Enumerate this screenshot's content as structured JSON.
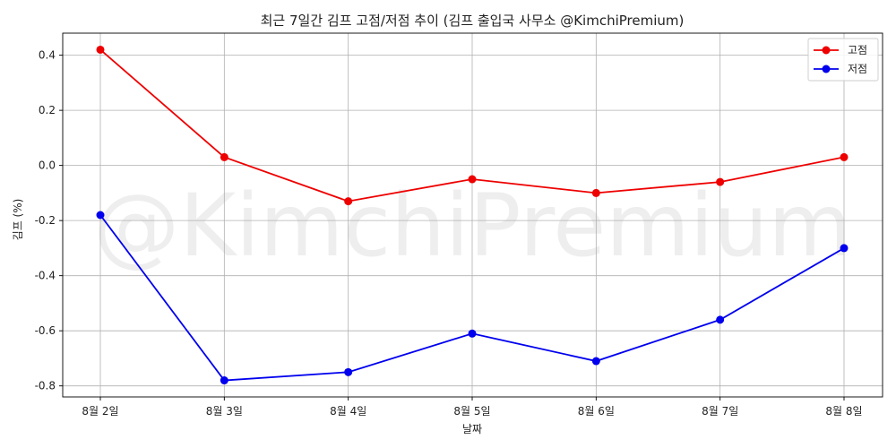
{
  "chart_data": {
    "type": "line",
    "title": "최근 7일간 김프 고점/저점 추이 (김프 출입국 사무소 @KimchiPremium)",
    "xlabel": "날짜",
    "ylabel": "김프 (%)",
    "categories": [
      "8월 2일",
      "8월 3일",
      "8월 4일",
      "8월 5일",
      "8월 6일",
      "8월 7일",
      "8월 8일"
    ],
    "series": [
      {
        "name": "고점",
        "color": "#ee0000",
        "values": [
          0.42,
          0.03,
          -0.13,
          -0.05,
          -0.1,
          -0.06,
          0.03
        ]
      },
      {
        "name": "저점",
        "color": "#0000ee",
        "values": [
          -0.18,
          -0.78,
          -0.75,
          -0.61,
          -0.71,
          -0.56,
          -0.3
        ]
      }
    ],
    "ylim": [
      -0.84,
      0.48
    ],
    "yticks": [
      -0.8,
      -0.6,
      -0.4,
      -0.2,
      0.0,
      0.2,
      0.4
    ],
    "ytick_labels": [
      "-0.8",
      "-0.6",
      "-0.4",
      "-0.2",
      "0.0",
      "0.2",
      "0.4"
    ],
    "grid": true,
    "legend_position": "top-right",
    "watermark": "@KimchiPremium"
  }
}
